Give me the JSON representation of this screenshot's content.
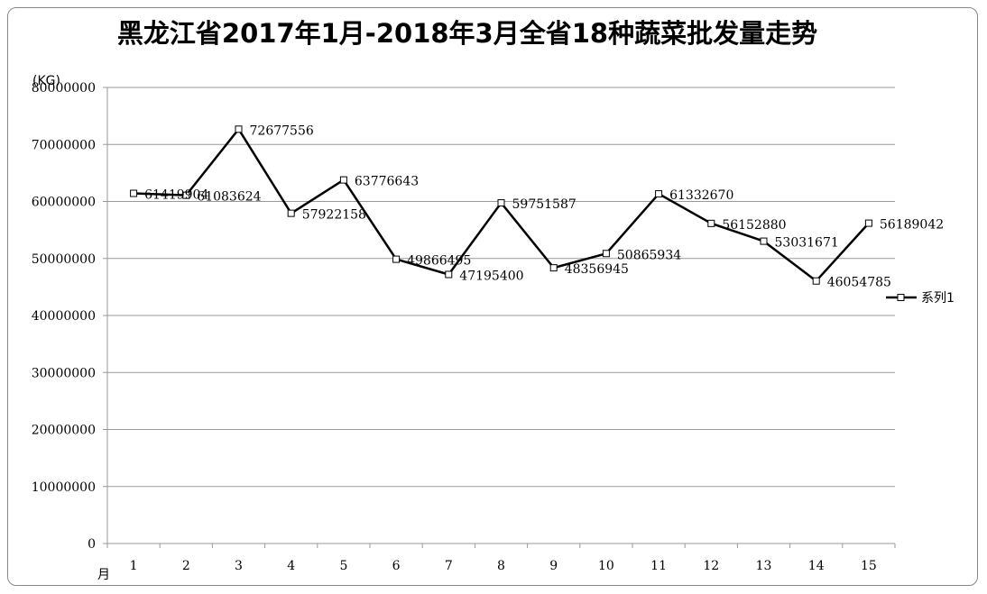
{
  "chart_data": {
    "type": "line",
    "title": "黑龙江省2017年1月-2018年3月全省18种蔬菜批发量走势",
    "ylabel": "(KG)",
    "xlabel": "月",
    "ylim": [
      0,
      80000000
    ],
    "yticks": [
      0,
      10000000,
      20000000,
      30000000,
      40000000,
      50000000,
      60000000,
      70000000,
      80000000
    ],
    "categories": [
      "1",
      "2",
      "3",
      "4",
      "5",
      "6",
      "7",
      "8",
      "9",
      "10",
      "11",
      "12",
      "13",
      "14",
      "15"
    ],
    "grid": true,
    "legend_position": "right",
    "series": [
      {
        "name": "系列1",
        "color": "#000000",
        "values": [
          61419904,
          61083624,
          72677556,
          57922158,
          63776643,
          49866495,
          47195400,
          59751587,
          48356945,
          50865934,
          61332670,
          56152880,
          53031671,
          46054785,
          56189042
        ]
      }
    ]
  }
}
